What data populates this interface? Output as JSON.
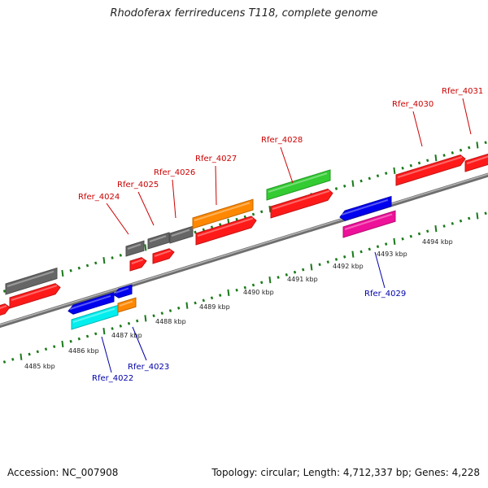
{
  "title": "Rhodoferax ferrireducens T118, complete genome",
  "footer": {
    "accession": "Accession: NC_007908",
    "summary": "Topology: circular; Length: 4,712,337 bp; Genes: 4,228"
  },
  "colors": {
    "backbone": "#8a8a8a",
    "tick": "#1a7a1a",
    "forward_label": "#cc0000",
    "reverse_label": "#0000aa"
  },
  "kbp_labels": [
    "4485 kbp",
    "4486 kbp",
    "4487 kbp",
    "4488 kbp",
    "4489 kbp",
    "4490 kbp",
    "4491 kbp",
    "4492 kbp",
    "4493 kbp",
    "4494 kbp"
  ],
  "gene_labels": [
    {
      "name": "Rfer_4022",
      "strand": "reverse"
    },
    {
      "name": "Rfer_4023",
      "strand": "reverse"
    },
    {
      "name": "Rfer_4024",
      "strand": "forward"
    },
    {
      "name": "Rfer_4025",
      "strand": "forward"
    },
    {
      "name": "Rfer_4026",
      "strand": "forward"
    },
    {
      "name": "Rfer_4027",
      "strand": "forward"
    },
    {
      "name": "Rfer_4028",
      "strand": "forward"
    },
    {
      "name": "Rfer_4029",
      "strand": "reverse"
    },
    {
      "name": "Rfer_4030",
      "strand": "forward"
    },
    {
      "name": "Rfer_4031",
      "strand": "forward"
    }
  ],
  "features": [
    {
      "color": "#ff1a1a",
      "direction": "right"
    },
    {
      "color": "#ff1a1a",
      "direction": "right"
    },
    {
      "color": "#666666",
      "direction": "none"
    },
    {
      "color": "#0000ee",
      "direction": "left"
    },
    {
      "color": "#0000ee",
      "direction": "left"
    },
    {
      "color": "#00eeee",
      "direction": "none"
    },
    {
      "color": "#ff8800",
      "direction": "none"
    },
    {
      "color": "#666666",
      "direction": "none"
    },
    {
      "color": "#ff1a1a",
      "direction": "right"
    },
    {
      "color": "#666666",
      "direction": "none"
    },
    {
      "color": "#ff1a1a",
      "direction": "right"
    },
    {
      "color": "#666666",
      "direction": "none"
    },
    {
      "color": "#ff8800",
      "direction": "none"
    },
    {
      "color": "#ff1a1a",
      "direction": "right"
    },
    {
      "color": "#33cc33",
      "direction": "none"
    },
    {
      "color": "#ff1a1a",
      "direction": "right"
    },
    {
      "color": "#0000ee",
      "direction": "left"
    },
    {
      "color": "#ee1199",
      "direction": "none"
    },
    {
      "color": "#ff1a1a",
      "direction": "right"
    },
    {
      "color": "#ff1a1a",
      "direction": "right"
    }
  ]
}
